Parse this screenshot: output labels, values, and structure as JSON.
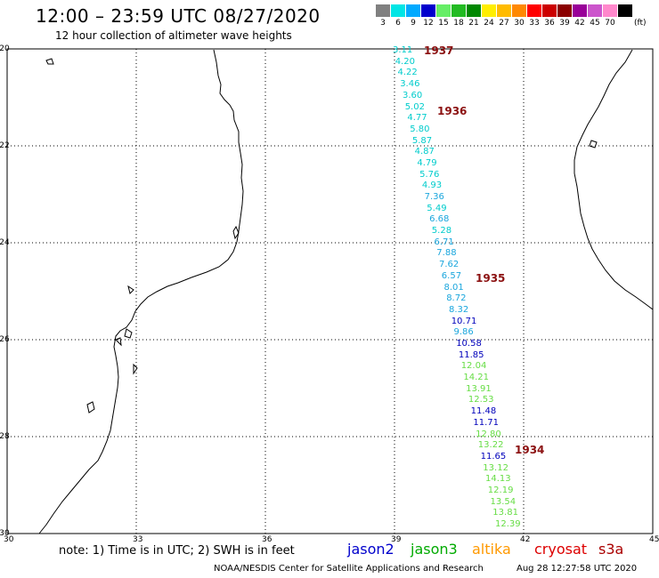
{
  "header": {
    "title": "12:00 – 23:59 UTC 08/27/2020",
    "subtitle": "12 hour collection of altimeter wave heights"
  },
  "legend": {
    "unit": "(ft)",
    "entries": [
      {
        "label": "3",
        "color": "#808080"
      },
      {
        "label": "6",
        "color": "#00e5e5"
      },
      {
        "label": "9",
        "color": "#00aaff"
      },
      {
        "label": "12",
        "color": "#0000cd"
      },
      {
        "label": "15",
        "color": "#66ee66"
      },
      {
        "label": "18",
        "color": "#22bb22"
      },
      {
        "label": "21",
        "color": "#008800"
      },
      {
        "label": "24",
        "color": "#ffee00"
      },
      {
        "label": "27",
        "color": "#ffbb00"
      },
      {
        "label": "30",
        "color": "#ff8800"
      },
      {
        "label": "33",
        "color": "#ff0000"
      },
      {
        "label": "36",
        "color": "#cc0000"
      },
      {
        "label": "39",
        "color": "#8b0000"
      },
      {
        "label": "42",
        "color": "#990099"
      },
      {
        "label": "45",
        "color": "#cc55cc"
      },
      {
        "label": "70",
        "color": "#ff88cc"
      },
      {
        "label": "",
        "color": "#000000"
      }
    ]
  },
  "axes": {
    "lat_labels": [
      "-20",
      "-22",
      "-24",
      "-26",
      "-28",
      "-30"
    ],
    "lon_labels": [
      "30",
      "33",
      "36",
      "39",
      "42",
      "45"
    ]
  },
  "wave_heights": [
    {
      "v": "3.11",
      "color": "#00cccc"
    },
    {
      "v": "4.20",
      "color": "#00cccc"
    },
    {
      "v": "4.22",
      "color": "#00cccc"
    },
    {
      "v": "3.46",
      "color": "#00cccc"
    },
    {
      "v": "3.60",
      "color": "#00cccc"
    },
    {
      "v": "5.02",
      "color": "#00cccc"
    },
    {
      "v": "4.77",
      "color": "#00cccc"
    },
    {
      "v": "5.80",
      "color": "#00cccc"
    },
    {
      "v": "5.87",
      "color": "#00cccc"
    },
    {
      "v": "4.87",
      "color": "#00cccc"
    },
    {
      "v": "4.79",
      "color": "#00cccc"
    },
    {
      "v": "5.76",
      "color": "#00cccc"
    },
    {
      "v": "4.93",
      "color": "#00cccc"
    },
    {
      "v": "7.36",
      "color": "#1aa6dd"
    },
    {
      "v": "5.49",
      "color": "#00cccc"
    },
    {
      "v": "6.68",
      "color": "#1aa6dd"
    },
    {
      "v": "5.28",
      "color": "#00cccc"
    },
    {
      "v": "6.71",
      "color": "#1aa6dd"
    },
    {
      "v": "7.88",
      "color": "#1aa6dd"
    },
    {
      "v": "7.62",
      "color": "#1aa6dd"
    },
    {
      "v": "6.57",
      "color": "#1aa6dd"
    },
    {
      "v": "8.01",
      "color": "#1aa6dd"
    },
    {
      "v": "8.72",
      "color": "#1aa6dd"
    },
    {
      "v": "8.32",
      "color": "#1aa6dd"
    },
    {
      "v": "10.71",
      "color": "#0000bb"
    },
    {
      "v": "9.86",
      "color": "#1aa6dd"
    },
    {
      "v": "10.58",
      "color": "#0000bb"
    },
    {
      "v": "11.85",
      "color": "#0000bb"
    },
    {
      "v": "12.04",
      "color": "#66dd44"
    },
    {
      "v": "14.21",
      "color": "#66dd44"
    },
    {
      "v": "13.91",
      "color": "#66dd44"
    },
    {
      "v": "12.53",
      "color": "#66dd44"
    },
    {
      "v": "11.48",
      "color": "#0000bb"
    },
    {
      "v": "11.71",
      "color": "#0000bb"
    },
    {
      "v": "12.80",
      "color": "#66dd44"
    },
    {
      "v": "13.22",
      "color": "#66dd44"
    },
    {
      "v": "11.65",
      "color": "#0000bb"
    },
    {
      "v": "13.12",
      "color": "#66dd44"
    },
    {
      "v": "14.13",
      "color": "#66dd44"
    },
    {
      "v": "12.19",
      "color": "#66dd44"
    },
    {
      "v": "13.54",
      "color": "#66dd44"
    },
    {
      "v": "13.81",
      "color": "#66dd44"
    },
    {
      "v": "12.39",
      "color": "#66dd44"
    }
  ],
  "revolutions": [
    "1937",
    "1936",
    "1935",
    "1934"
  ],
  "footer": {
    "note": "note:  1) Time is in UTC;  2) SWH is in feet",
    "satellites": [
      {
        "name": "jason2",
        "color": "#0000cc"
      },
      {
        "name": "jason3",
        "color": "#00aa00"
      },
      {
        "name": "altika",
        "color": "#ff9900"
      },
      {
        "name": "cryosat",
        "color": "#dd0000"
      },
      {
        "name": "s3a",
        "color": "#aa0000"
      }
    ],
    "credit": "NOAA/NESDIS Center for Satellite Applications and Research",
    "timestamp": "Aug 28 12:27:58 UTC 2020"
  }
}
